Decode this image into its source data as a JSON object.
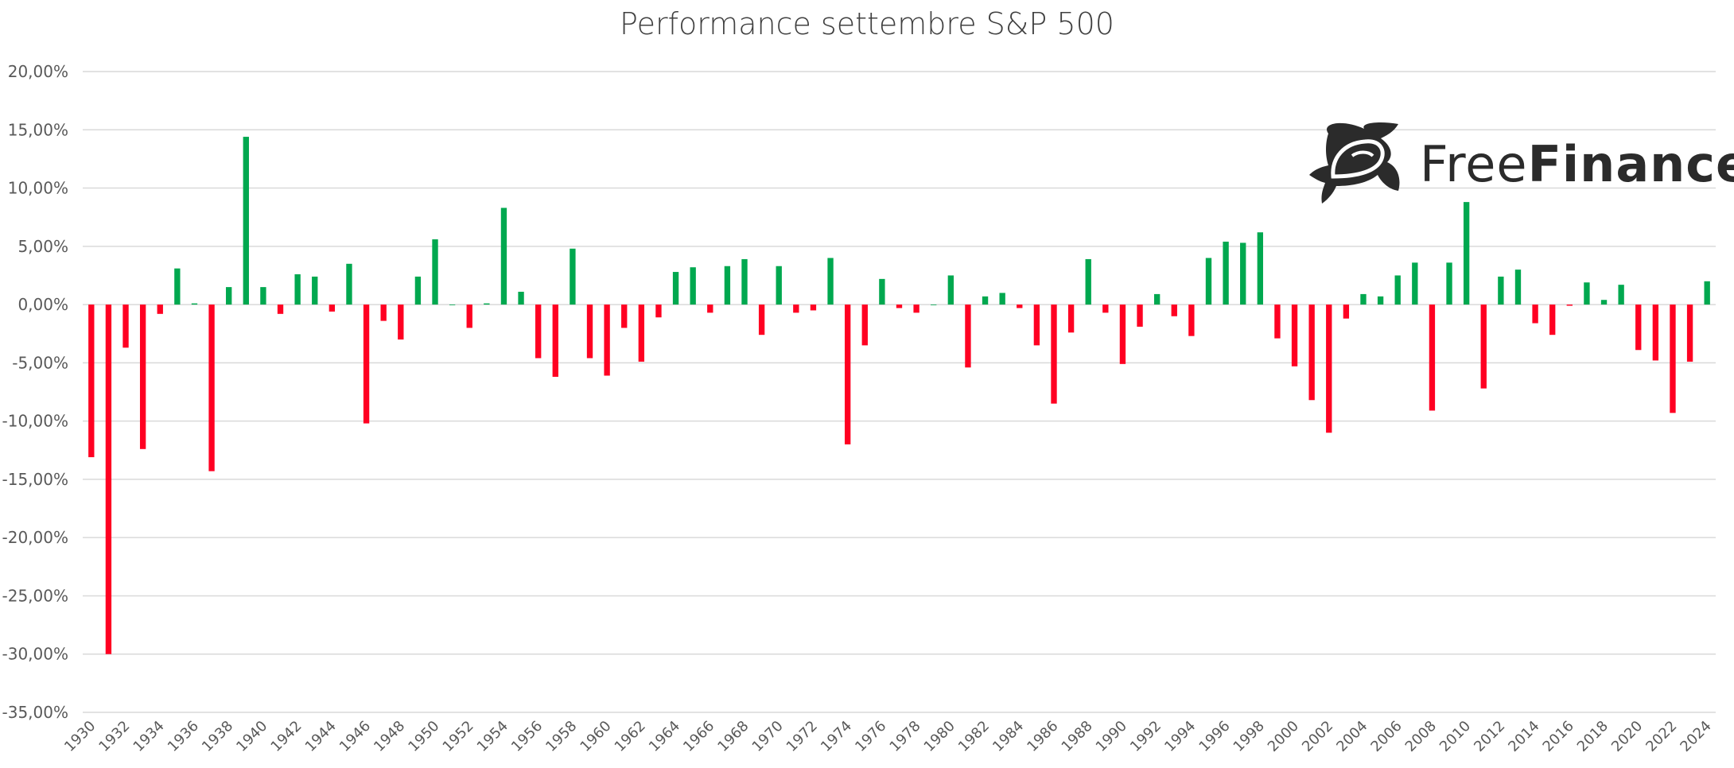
{
  "chart_data": {
    "type": "bar",
    "title": "Performance settembre S&P 500",
    "xlabel": "",
    "ylabel": "",
    "ylim": [
      -35,
      20
    ],
    "y_ticks": [
      20,
      15,
      10,
      5,
      0,
      -5,
      -10,
      -15,
      -20,
      -25,
      -30,
      -35
    ],
    "y_tick_labels": [
      "20,00%",
      "15,00%",
      "10,00%",
      "5,00%",
      "0,00%",
      "-5,00%",
      "-10,00%",
      "-15,00%",
      "-20,00%",
      "-25,00%",
      "-30,00%",
      "-35,00%"
    ],
    "grid": true,
    "legend": "none",
    "value_unit": "percent",
    "categories": [
      1930,
      1931,
      1932,
      1933,
      1934,
      1935,
      1936,
      1937,
      1938,
      1939,
      1940,
      1941,
      1942,
      1943,
      1944,
      1945,
      1946,
      1947,
      1948,
      1949,
      1950,
      1951,
      1952,
      1953,
      1954,
      1955,
      1956,
      1957,
      1958,
      1959,
      1960,
      1961,
      1962,
      1963,
      1964,
      1965,
      1966,
      1967,
      1968,
      1969,
      1970,
      1971,
      1972,
      1973,
      1974,
      1975,
      1976,
      1977,
      1978,
      1979,
      1980,
      1981,
      1982,
      1983,
      1984,
      1985,
      1986,
      1987,
      1988,
      1989,
      1990,
      1991,
      1992,
      1993,
      1994,
      1995,
      1996,
      1997,
      1998,
      1999,
      2000,
      2001,
      2002,
      2003,
      2004,
      2005,
      2006,
      2007,
      2008,
      2009,
      2010,
      2011,
      2012,
      2013,
      2014,
      2015,
      2016,
      2017,
      2018,
      2019,
      2020,
      2021,
      2022,
      2023,
      2024
    ],
    "values": [
      -13.1,
      -30.0,
      -3.7,
      -12.4,
      -0.8,
      3.1,
      0.1,
      -14.3,
      1.5,
      14.4,
      1.5,
      -0.8,
      2.6,
      2.4,
      -0.6,
      3.5,
      -10.2,
      -1.4,
      -3.0,
      2.4,
      5.6,
      0.0,
      -2.0,
      0.1,
      8.3,
      1.1,
      -4.6,
      -6.2,
      4.8,
      -4.6,
      -6.1,
      -2.0,
      -4.9,
      -1.1,
      2.8,
      3.2,
      -0.7,
      3.3,
      3.9,
      -2.6,
      3.3,
      -0.7,
      -0.5,
      4.0,
      -12.0,
      -3.5,
      2.2,
      -0.3,
      -0.7,
      0.0,
      2.5,
      -5.4,
      0.7,
      1.0,
      -0.3,
      -3.5,
      -8.5,
      -2.4,
      3.9,
      -0.7,
      -5.1,
      -1.9,
      0.9,
      -1.0,
      -2.7,
      4.0,
      5.4,
      5.3,
      6.2,
      -2.9,
      -5.3,
      -8.2,
      -11.0,
      -1.2,
      0.9,
      0.7,
      2.5,
      3.6,
      -9.1,
      3.6,
      8.8,
      -7.2,
      2.4,
      3.0,
      -1.6,
      -2.6,
      -0.1,
      1.9,
      0.4,
      1.7,
      -3.9,
      -4.8,
      -9.3,
      -4.9,
      2.0
    ],
    "colors": {
      "positive": "#00a84f",
      "negative": "#ff0022",
      "grid": "#d9d9d9"
    }
  },
  "logo": {
    "text_regular": "Free",
    "text_bold": "Finance"
  }
}
